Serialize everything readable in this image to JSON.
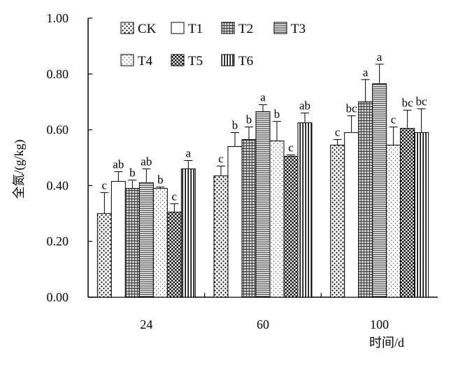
{
  "chart_data": {
    "type": "bar",
    "categories": [
      "24",
      "60",
      "100"
    ],
    "xlabel": "时间/d",
    "ylabel": "全氮/(g/kg)",
    "ylim": [
      0,
      1.0
    ],
    "yticks": [
      "0.00",
      "0.20",
      "0.40",
      "0.60",
      "0.80",
      "1.00"
    ],
    "grid": false,
    "legend_position": "top-left, inside plot, 2 rows",
    "series": [
      {
        "name": "CK",
        "pattern": "dots",
        "values": [
          0.3,
          0.435,
          0.545
        ],
        "errors": [
          0.075,
          0.035,
          0.02
        ],
        "labels": [
          "c",
          "c",
          "c"
        ]
      },
      {
        "name": "T1",
        "pattern": "blank",
        "values": [
          0.415,
          0.54,
          0.59
        ],
        "errors": [
          0.035,
          0.05,
          0.06
        ],
        "labels": [
          "ab",
          "b",
          "bc"
        ]
      },
      {
        "name": "T2",
        "pattern": "grid",
        "values": [
          0.39,
          0.565,
          0.7
        ],
        "errors": [
          0.03,
          0.045,
          0.08
        ],
        "labels": [
          "b",
          "b",
          "a"
        ]
      },
      {
        "name": "T3",
        "pattern": "horizontal",
        "values": [
          0.41,
          0.665,
          0.765
        ],
        "errors": [
          0.05,
          0.025,
          0.07
        ],
        "labels": [
          "ab",
          "a",
          "a"
        ]
      },
      {
        "name": "T4",
        "pattern": "light-dots",
        "values": [
          0.39,
          0.56,
          0.545
        ],
        "errors": [
          0.005,
          0.07,
          0.065
        ],
        "labels": [
          "b",
          "b",
          "c"
        ]
      },
      {
        "name": "T5",
        "pattern": "checker",
        "values": [
          0.305,
          0.505,
          0.605
        ],
        "errors": [
          0.03,
          0.005,
          0.065
        ],
        "labels": [
          "c",
          "c",
          "bc"
        ]
      },
      {
        "name": "T6",
        "pattern": "vertical",
        "values": [
          0.46,
          0.625,
          0.59
        ],
        "errors": [
          0.03,
          0.035,
          0.085
        ],
        "labels": [
          "a",
          "ab",
          "bc"
        ]
      }
    ]
  }
}
